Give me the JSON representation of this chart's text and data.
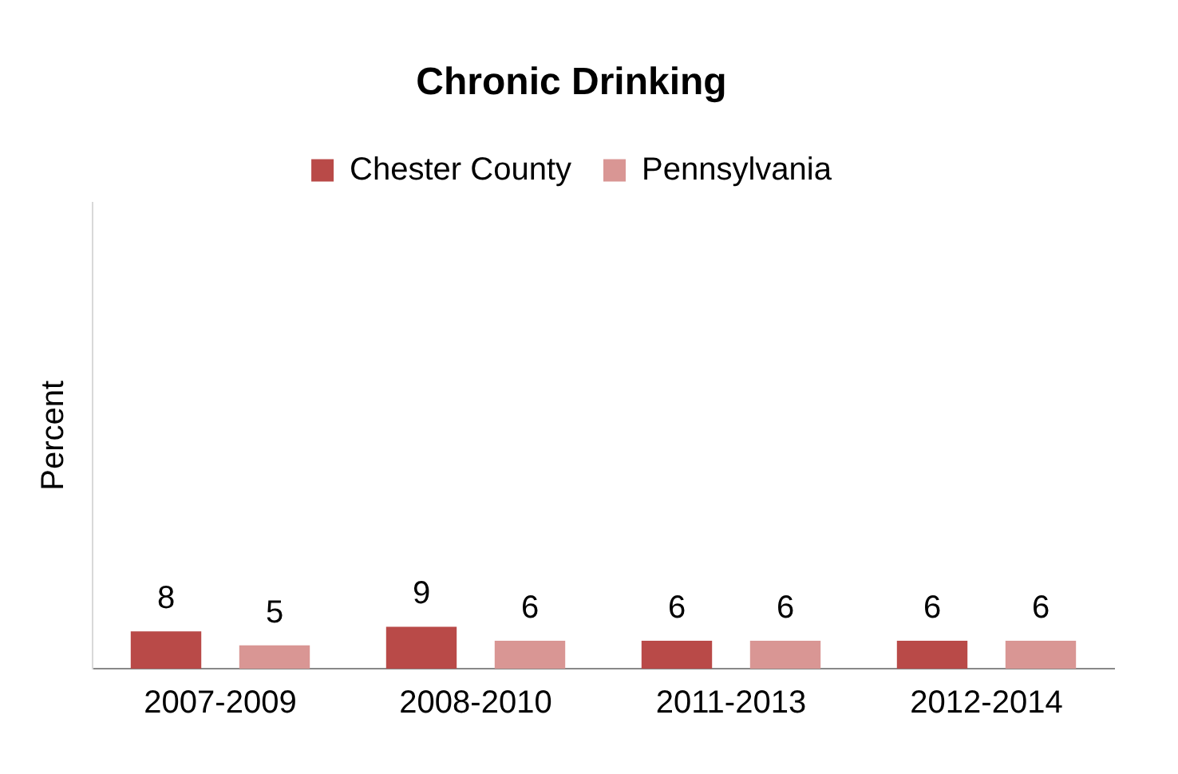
{
  "chart_data": {
    "type": "bar",
    "title": "Chronic Drinking",
    "ylabel": "Percent",
    "categories": [
      "2007-2009",
      "2008-2010",
      "2011-2013",
      "2012-2014"
    ],
    "series": [
      {
        "name": "Chester County",
        "color": "#b94a48",
        "values": [
          8,
          9,
          6,
          6
        ]
      },
      {
        "name": "Pennsylvania",
        "color": "#d99694",
        "values": [
          5,
          6,
          6,
          6
        ]
      }
    ],
    "ylim": [
      0,
      100
    ],
    "tick_labels": "x",
    "data_labels": true,
    "legend": "top",
    "grid": false
  }
}
